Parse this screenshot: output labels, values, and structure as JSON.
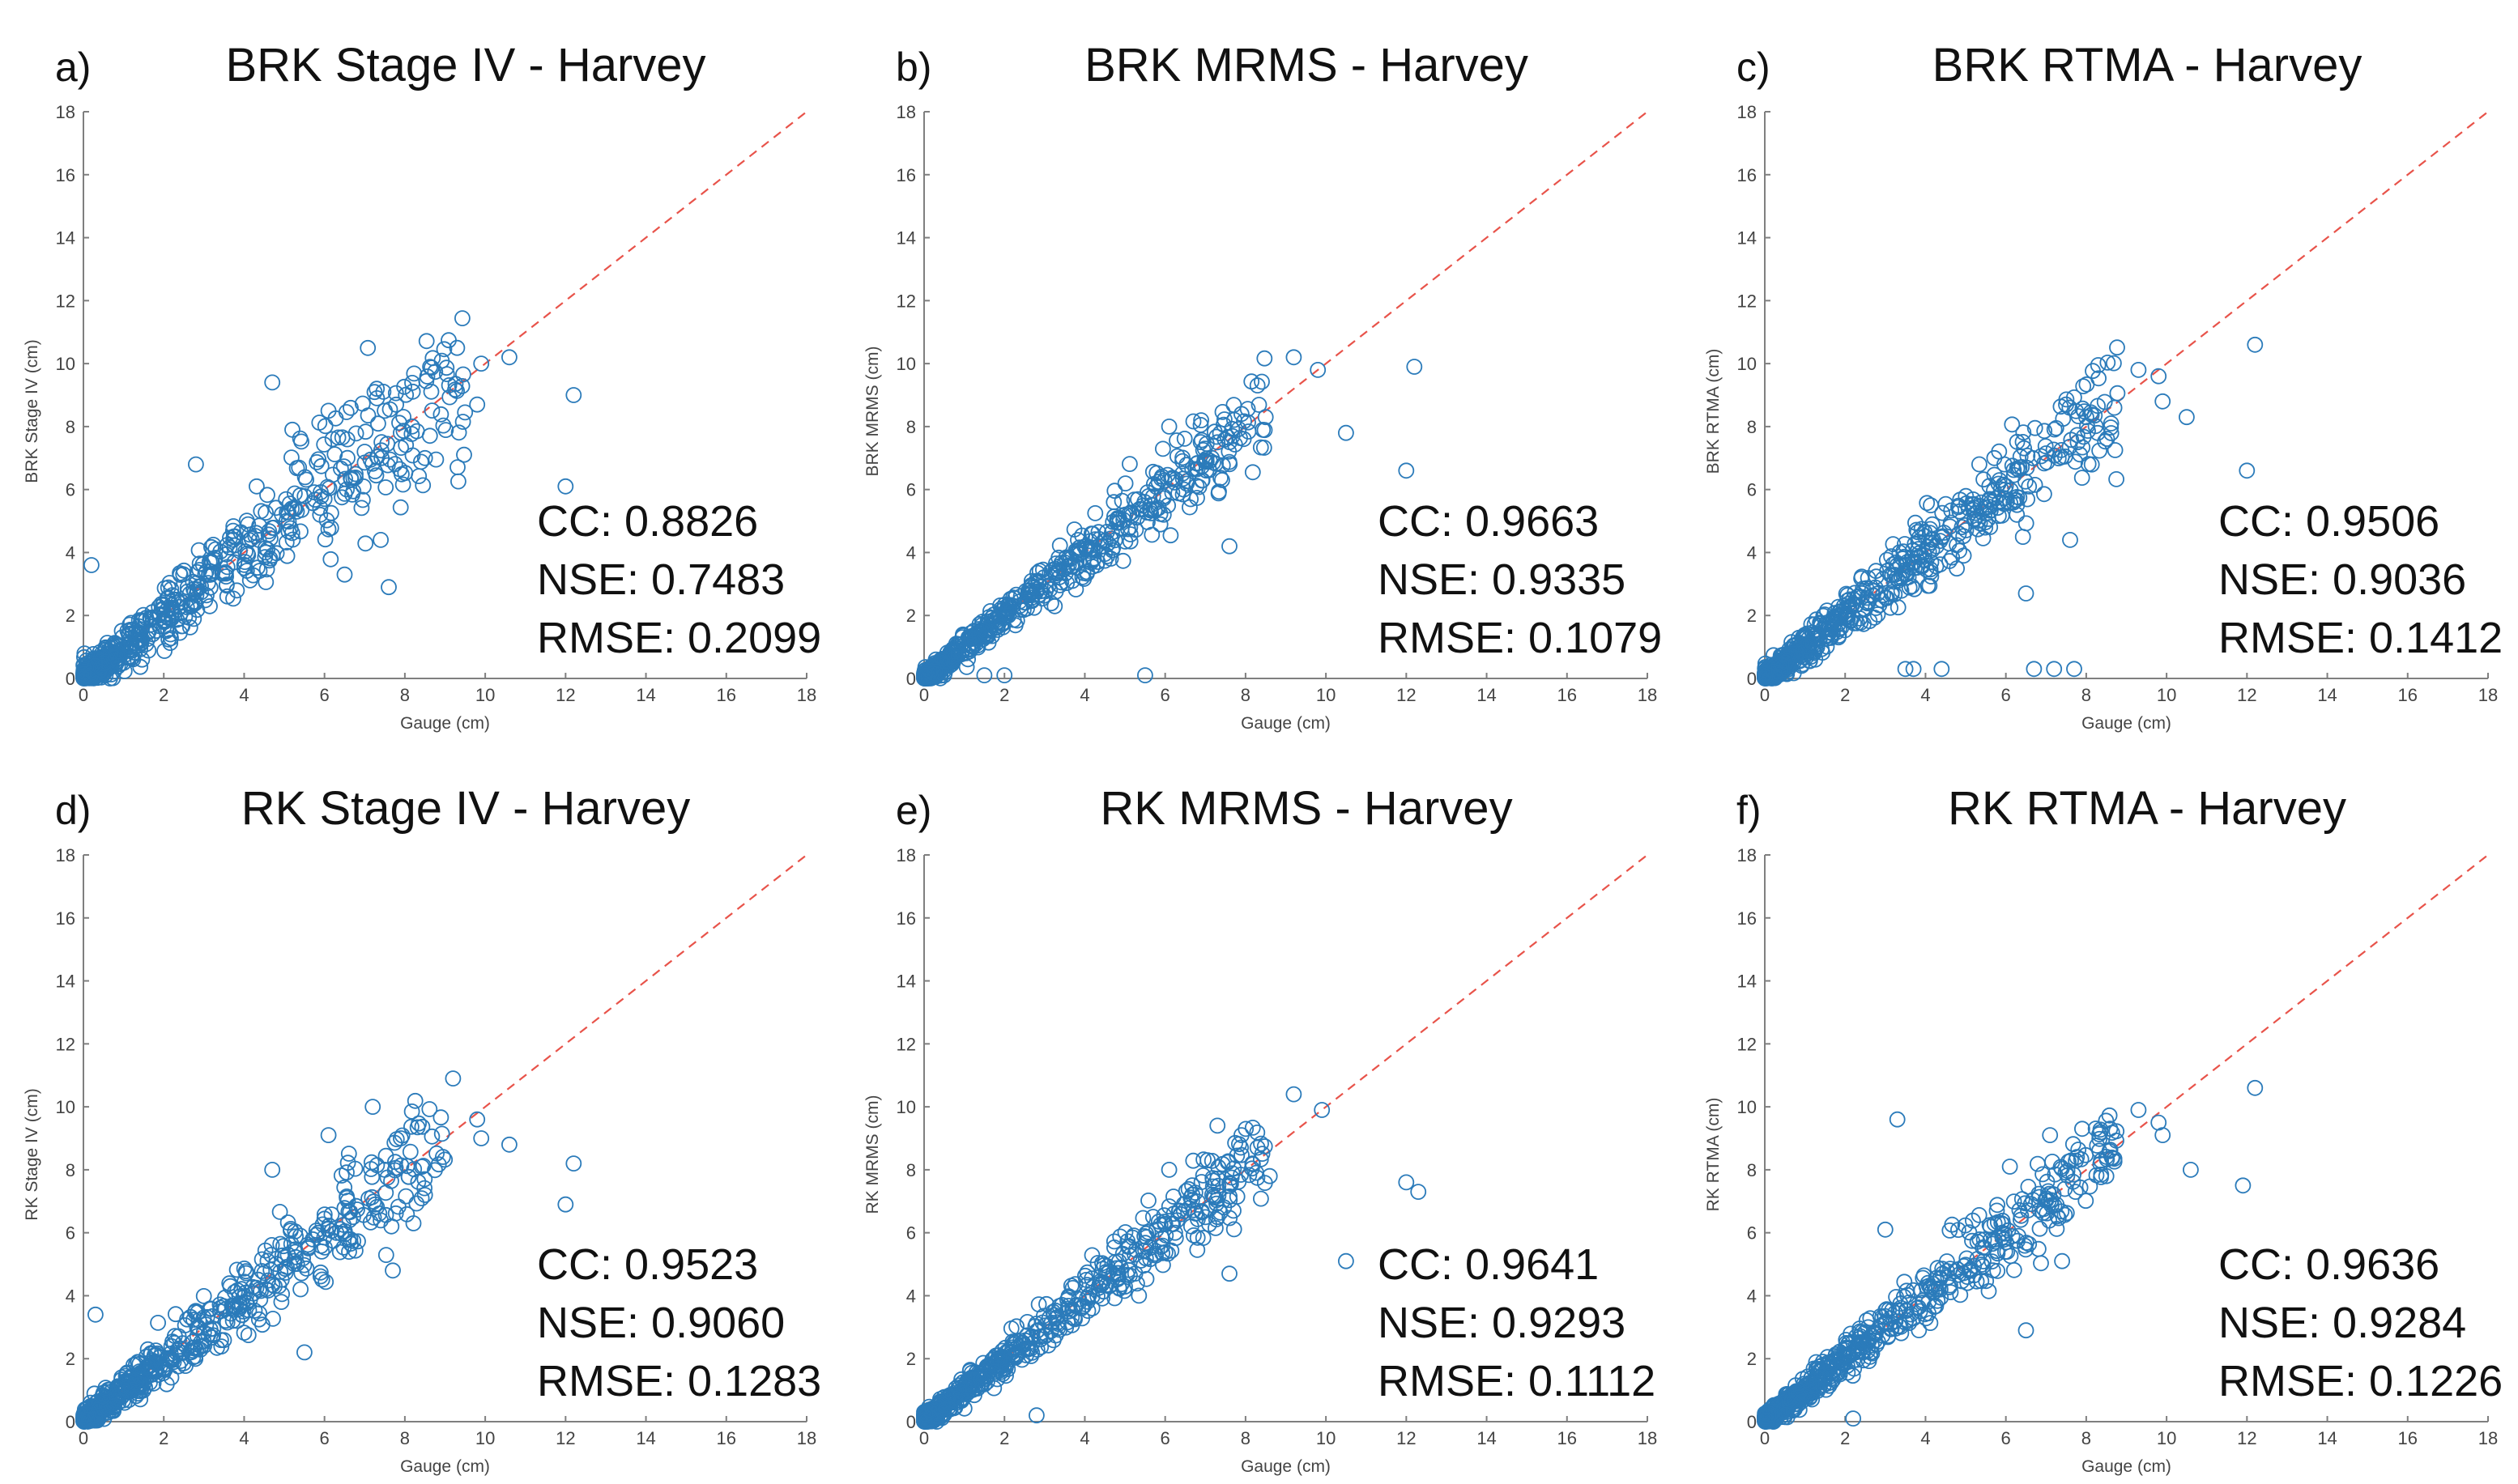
{
  "figure": {
    "description_title": "Harvey rainfall estimates vs gauge: BRK and RK for Stage IV, MRMS, RTMA"
  },
  "colors": {
    "marker": "#2b7bba",
    "identity_line": "#e8534a",
    "axis": "#7f7f7f",
    "text": "#111111"
  },
  "chart_data": [
    {
      "type": "scatter",
      "panel": "a)",
      "title": "BRK Stage IV - Harvey",
      "xlabel": "Gauge (cm)",
      "ylabel": "BRK Stage IV (cm)",
      "xlim": [
        0,
        18
      ],
      "ylim": [
        0,
        18
      ],
      "xticks": [
        "0",
        "2",
        "4",
        "6",
        "8",
        "10",
        "12",
        "14",
        "16",
        "18"
      ],
      "yticks": [
        "0",
        "2",
        "4",
        "6",
        "8",
        "10",
        "12",
        "14",
        "16",
        "18"
      ],
      "reference_line": "1:1 dashed",
      "stats": [
        "CC: 0.8826",
        "NSE: 0.7483",
        "RMSE: 0.2099"
      ],
      "outliers": [
        [
          9.3,
          10.5
        ],
        [
          10.6,
          10.2
        ],
        [
          9.9,
          10.0
        ],
        [
          9.8,
          8.7
        ],
        [
          12.2,
          9.0
        ],
        [
          12.0,
          6.1
        ],
        [
          4.7,
          9.4
        ],
        [
          7.3,
          9.2
        ],
        [
          6.1,
          8.5
        ],
        [
          7.5,
          8.5
        ],
        [
          8.5,
          7.0
        ],
        [
          7.9,
          7.8
        ],
        [
          5.2,
          7.9
        ],
        [
          2.8,
          6.8
        ],
        [
          6.5,
          3.3
        ],
        [
          7.6,
          2.9
        ],
        [
          7.4,
          4.4
        ],
        [
          0.2,
          3.6
        ],
        [
          6.2,
          7.6
        ],
        [
          7.0,
          7.2
        ]
      ],
      "points": {
        "n": 620,
        "spread": 0.85,
        "max_x": 9.5,
        "seed": 11
      }
    },
    {
      "type": "scatter",
      "panel": "b)",
      "title": "BRK MRMS - Harvey",
      "xlabel": "Gauge (cm)",
      "ylabel": "BRK MRMS (cm)",
      "xlim": [
        0,
        18
      ],
      "ylim": [
        0,
        18
      ],
      "xticks": [
        "0",
        "2",
        "4",
        "6",
        "8",
        "10",
        "12",
        "14",
        "16",
        "18"
      ],
      "yticks": [
        "0",
        "2",
        "4",
        "6",
        "8",
        "10",
        "12",
        "14",
        "16",
        "18"
      ],
      "reference_line": "1:1 dashed",
      "stats": [
        "CC: 0.9663",
        "NSE: 0.9335",
        "RMSE: 0.1079"
      ],
      "outliers": [
        [
          9.2,
          10.2
        ],
        [
          9.8,
          9.8
        ],
        [
          12.2,
          9.9
        ],
        [
          10.5,
          7.8
        ],
        [
          12.0,
          6.6
        ],
        [
          7.9,
          8.4
        ],
        [
          8.5,
          8.3
        ],
        [
          7.3,
          7.5
        ],
        [
          7.6,
          4.2
        ],
        [
          6.1,
          8.0
        ],
        [
          5.5,
          0.1
        ],
        [
          1.5,
          0.1
        ],
        [
          2.0,
          0.1
        ],
        [
          0.5,
          0.1
        ]
      ],
      "points": {
        "n": 620,
        "spread": 0.45,
        "max_x": 8.5,
        "seed": 23
      }
    },
    {
      "type": "scatter",
      "panel": "c)",
      "title": "BRK RTMA - Harvey",
      "xlabel": "Gauge (cm)",
      "ylabel": "BRK RTMA (cm)",
      "xlim": [
        0,
        18
      ],
      "ylim": [
        0,
        18
      ],
      "xticks": [
        "0",
        "2",
        "4",
        "6",
        "8",
        "10",
        "12",
        "14",
        "16",
        "18"
      ],
      "yticks": [
        "0",
        "2",
        "4",
        "6",
        "8",
        "10",
        "12",
        "14",
        "16",
        "18"
      ],
      "reference_line": "1:1 dashed",
      "stats": [
        "CC: 0.9506",
        "NSE: 0.9036",
        "RMSE: 0.1412"
      ],
      "outliers": [
        [
          12.2,
          10.6
        ],
        [
          9.3,
          9.8
        ],
        [
          9.8,
          9.6
        ],
        [
          9.9,
          8.8
        ],
        [
          10.5,
          8.3
        ],
        [
          12.0,
          6.6
        ],
        [
          8.7,
          8.6
        ],
        [
          7.6,
          4.4
        ],
        [
          6.5,
          2.7
        ],
        [
          3.5,
          0.3
        ],
        [
          4.4,
          0.3
        ],
        [
          6.7,
          0.3
        ],
        [
          7.2,
          0.3
        ],
        [
          7.7,
          0.3
        ],
        [
          3.7,
          0.3
        ],
        [
          8.0,
          8.3
        ]
      ],
      "points": {
        "n": 620,
        "spread": 0.6,
        "max_x": 8.8,
        "seed": 37
      }
    },
    {
      "type": "scatter",
      "panel": "d)",
      "title": "RK Stage IV - Harvey",
      "xlabel": "Gauge (cm)",
      "ylabel": "RK Stage IV (cm)",
      "xlim": [
        0,
        18
      ],
      "ylim": [
        0,
        18
      ],
      "xticks": [
        "0",
        "2",
        "4",
        "6",
        "8",
        "10",
        "12",
        "14",
        "16",
        "18"
      ],
      "yticks": [
        "0",
        "2",
        "4",
        "6",
        "8",
        "10",
        "12",
        "14",
        "16",
        "18"
      ],
      "reference_line": "1:1 dashed",
      "stats": [
        "CC: 0.9523",
        "NSE: 0.9060",
        "RMSE: 0.1283"
      ],
      "outliers": [
        [
          9.2,
          10.9
        ],
        [
          7.2,
          10.0
        ],
        [
          9.8,
          9.6
        ],
        [
          9.9,
          9.0
        ],
        [
          10.6,
          8.8
        ],
        [
          12.2,
          8.2
        ],
        [
          12.0,
          6.9
        ],
        [
          6.1,
          9.1
        ],
        [
          7.9,
          9.0
        ],
        [
          8.5,
          7.2
        ],
        [
          7.7,
          4.8
        ],
        [
          0.3,
          3.4
        ],
        [
          5.5,
          2.2
        ],
        [
          4.7,
          8.0
        ],
        [
          7.5,
          8.0
        ]
      ],
      "points": {
        "n": 620,
        "spread": 0.6,
        "max_x": 9.0,
        "seed": 51
      }
    },
    {
      "type": "scatter",
      "panel": "e)",
      "title": "RK MRMS - Harvey",
      "xlabel": "Gauge (cm)",
      "ylabel": "RK MRMS (cm)",
      "xlim": [
        0,
        18
      ],
      "ylim": [
        0,
        18
      ],
      "xticks": [
        "0",
        "2",
        "4",
        "6",
        "8",
        "10",
        "12",
        "14",
        "16",
        "18"
      ],
      "yticks": [
        "0",
        "2",
        "4",
        "6",
        "8",
        "10",
        "12",
        "14",
        "16",
        "18"
      ],
      "reference_line": "1:1 dashed",
      "stats": [
        "CC: 0.9641",
        "NSE: 0.9293",
        "RMSE: 0.1112"
      ],
      "outliers": [
        [
          9.2,
          10.4
        ],
        [
          9.9,
          9.9
        ],
        [
          12.0,
          7.6
        ],
        [
          12.3,
          7.3
        ],
        [
          10.5,
          5.1
        ],
        [
          7.3,
          9.4
        ],
        [
          7.9,
          9.1
        ],
        [
          8.6,
          7.8
        ],
        [
          7.6,
          4.7
        ],
        [
          6.1,
          8.0
        ],
        [
          2.8,
          0.2
        ],
        [
          7.3,
          6.5
        ],
        [
          7.7,
          6.7
        ]
      ],
      "points": {
        "n": 620,
        "spread": 0.45,
        "max_x": 8.5,
        "seed": 67
      }
    },
    {
      "type": "scatter",
      "panel": "f)",
      "title": "RK RTMA - Harvey",
      "xlabel": "Gauge (cm)",
      "ylabel": "RK RTMA (cm)",
      "xlim": [
        0,
        18
      ],
      "ylim": [
        0,
        18
      ],
      "xticks": [
        "0",
        "2",
        "4",
        "6",
        "8",
        "10",
        "12",
        "14",
        "16",
        "18"
      ],
      "yticks": [
        "0",
        "2",
        "4",
        "6",
        "8",
        "10",
        "12",
        "14",
        "16",
        "18"
      ],
      "reference_line": "1:1 dashed",
      "stats": [
        "CC: 0.9636",
        "NSE: 0.9284",
        "RMSE: 0.1226"
      ],
      "outliers": [
        [
          12.2,
          10.6
        ],
        [
          9.3,
          9.9
        ],
        [
          9.8,
          9.5
        ],
        [
          9.9,
          9.1
        ],
        [
          10.6,
          8.0
        ],
        [
          11.9,
          7.5
        ],
        [
          3.3,
          9.6
        ],
        [
          7.1,
          9.1
        ],
        [
          7.9,
          9.3
        ],
        [
          6.1,
          8.1
        ],
        [
          8.5,
          7.8
        ],
        [
          6.5,
          2.9
        ],
        [
          2.2,
          0.1
        ],
        [
          3.0,
          6.1
        ],
        [
          7.4,
          5.1
        ]
      ],
      "points": {
        "n": 620,
        "spread": 0.5,
        "max_x": 8.8,
        "seed": 79
      }
    }
  ]
}
